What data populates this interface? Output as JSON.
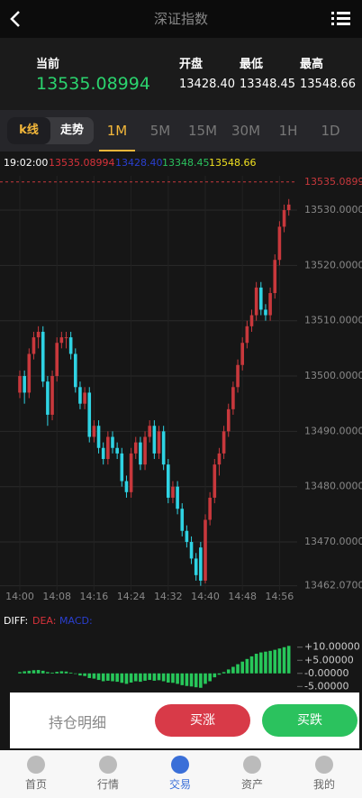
{
  "header": {
    "title": "深证指数"
  },
  "quote": {
    "current_label": "当前",
    "current": "13535.08994",
    "open_label": "开盘",
    "open": "13428.40",
    "low_label": "最低",
    "low": "13348.45",
    "high_label": "最高",
    "high": "13548.66"
  },
  "tabs": {
    "modes": [
      "k线",
      "走势"
    ],
    "periods": [
      "1M",
      "5M",
      "15M",
      "30M",
      "1H",
      "1D"
    ]
  },
  "chart_data": [
    {
      "type": "candlestick",
      "info": {
        "time": "19:02:00",
        "values": [
          "13535.08994",
          "13428.40",
          "13348.45",
          "13548.66"
        ]
      },
      "categories": [
        "14:00",
        null,
        null,
        null,
        null,
        null,
        null,
        null,
        "14:08",
        null,
        null,
        null,
        null,
        null,
        null,
        null,
        "14:16",
        null,
        null,
        null,
        null,
        null,
        null,
        null,
        "14:24",
        null,
        null,
        null,
        null,
        null,
        null,
        null,
        "14:32",
        null,
        null,
        null,
        null,
        null,
        null,
        null,
        "14:40",
        null,
        null,
        null,
        null,
        null,
        null,
        null,
        "14:48",
        null,
        null,
        null,
        null,
        null,
        null,
        null,
        "14:56",
        null,
        null
      ],
      "candles": [
        [
          13497,
          13501,
          13496,
          13500
        ],
        [
          13500,
          13501,
          13495,
          13497
        ],
        [
          13497,
          13505,
          13496,
          13504
        ],
        [
          13504,
          13508,
          13503,
          13507
        ],
        [
          13507,
          13509,
          13505,
          13508
        ],
        [
          13508,
          13509,
          13498,
          13499
        ],
        [
          13499,
          13500,
          13491,
          13493
        ],
        [
          13493,
          13501,
          13492,
          13500
        ],
        [
          13500,
          13507,
          13499,
          13506
        ],
        [
          13506,
          13508,
          13505,
          13507
        ],
        [
          13507,
          13508,
          13505,
          13507
        ],
        [
          13507,
          13508,
          13503,
          13504
        ],
        [
          13504,
          13505,
          13497,
          13498
        ],
        [
          13498,
          13499,
          13494,
          13495
        ],
        [
          13495,
          13498,
          13494,
          13497
        ],
        [
          13497,
          13498,
          13488,
          13489
        ],
        [
          13489,
          13492,
          13488,
          13491
        ],
        [
          13491,
          13492,
          13486,
          13487
        ],
        [
          13487,
          13488,
          13484,
          13485
        ],
        [
          13485,
          13490,
          13484,
          13489
        ],
        [
          13489,
          13490,
          13486,
          13487
        ],
        [
          13487,
          13488,
          13485,
          13486
        ],
        [
          13486,
          13487,
          13480,
          13481
        ],
        [
          13481,
          13482,
          13478,
          13479
        ],
        [
          13479,
          13487,
          13478,
          13486
        ],
        [
          13486,
          13489,
          13485,
          13488
        ],
        [
          13488,
          13489,
          13483,
          13484
        ],
        [
          13484,
          13490,
          13483,
          13489
        ],
        [
          13489,
          13492,
          13488,
          13491
        ],
        [
          13491,
          13492,
          13485,
          13486
        ],
        [
          13486,
          13491,
          13485,
          13490
        ],
        [
          13490,
          13491,
          13483,
          13484
        ],
        [
          13484,
          13485,
          13477,
          13478
        ],
        [
          13478,
          13481,
          13477,
          13480
        ],
        [
          13480,
          13481,
          13475,
          13476
        ],
        [
          13476,
          13477,
          13471,
          13472
        ],
        [
          13472,
          13473,
          13469,
          13470
        ],
        [
          13470,
          13471,
          13466,
          13467
        ],
        [
          13467,
          13468,
          13463,
          13464
        ],
        [
          13469,
          13470,
          13462.07,
          13463
        ],
        [
          13463,
          13475,
          13462.5,
          13474
        ],
        [
          13474,
          13479,
          13473,
          13478
        ],
        [
          13478,
          13485,
          13477,
          13484
        ],
        [
          13484,
          13487,
          13482,
          13486
        ],
        [
          13486,
          13491,
          13485,
          13490
        ],
        [
          13490,
          13495,
          13489,
          13494
        ],
        [
          13494,
          13499,
          13493,
          13498
        ],
        [
          13498,
          13503,
          13497,
          13502
        ],
        [
          13502,
          13507,
          13501,
          13506
        ],
        [
          13506,
          13510,
          13505,
          13509
        ],
        [
          13509,
          13512,
          13508,
          13511
        ],
        [
          13511,
          13517,
          13510,
          13516
        ],
        [
          13516,
          13517,
          13511,
          13512
        ],
        [
          13512,
          13513,
          13510,
          13511
        ],
        [
          13511,
          13516,
          13510,
          13515
        ],
        [
          13515,
          13522,
          13514,
          13521
        ],
        [
          13521,
          13528,
          13520,
          13527
        ],
        [
          13527,
          13531,
          13526,
          13530
        ],
        [
          13530,
          13532,
          13529,
          13531
        ]
      ],
      "up_color": "#c8383c",
      "down_color": "#2fd3e3",
      "last_price": {
        "value": 13535.08994,
        "label": "13535.08994"
      },
      "ylim": [
        13461.2,
        13536.2
      ],
      "yticks": [
        {
          "value": 13530,
          "label": "13530.0000"
        },
        {
          "value": 13520,
          "label": "13520.0000"
        },
        {
          "value": 13510,
          "label": "13510.0000"
        },
        {
          "value": 13500,
          "label": "13500.0000"
        },
        {
          "value": 13490,
          "label": "13490.0000"
        },
        {
          "value": 13480,
          "label": "13480.0000"
        },
        {
          "value": 13470,
          "label": "13470.0000"
        },
        {
          "value": 13462.07,
          "label": "13462.0700"
        }
      ],
      "grid": true
    },
    {
      "type": "bar",
      "legend": [
        "DIFF:",
        "DEA:",
        "MACD:"
      ],
      "values": [
        0.5,
        0.8,
        1,
        1.2,
        1.3,
        1,
        0.5,
        0.3,
        0.6,
        0.8,
        0.7,
        0.3,
        -0.2,
        -0.8,
        -1,
        -1.8,
        -2,
        -2.5,
        -3,
        -2.8,
        -3,
        -3.2,
        -3.6,
        -4,
        -3.5,
        -3,
        -3.2,
        -2.8,
        -2.5,
        -2.8,
        -2.6,
        -3,
        -3.5,
        -3.6,
        -4,
        -4.5,
        -4.8,
        -5,
        -5.3,
        -5.5,
        -4,
        -3,
        -1.5,
        -0.5,
        0.5,
        1.5,
        2.5,
        3.5,
        4.5,
        5.5,
        6.5,
        7.5,
        8,
        8.3,
        8.6,
        9,
        9.5,
        10,
        10.5
      ],
      "color": "#27c75a",
      "ylim": [
        -7.3,
        13.7
      ],
      "yticks": [
        {
          "value": 10,
          "label": "+10.00000"
        },
        {
          "value": 5,
          "label": "+5.00000"
        },
        {
          "value": 0,
          "label": "-0.00000"
        },
        {
          "value": -5,
          "label": "-5.00000"
        }
      ]
    }
  ],
  "actions": {
    "detail": "持仓明细",
    "buy_up": "买涨",
    "buy_down": "买跌"
  },
  "nav": [
    "首页",
    "行情",
    "交易",
    "资产",
    "我的"
  ]
}
